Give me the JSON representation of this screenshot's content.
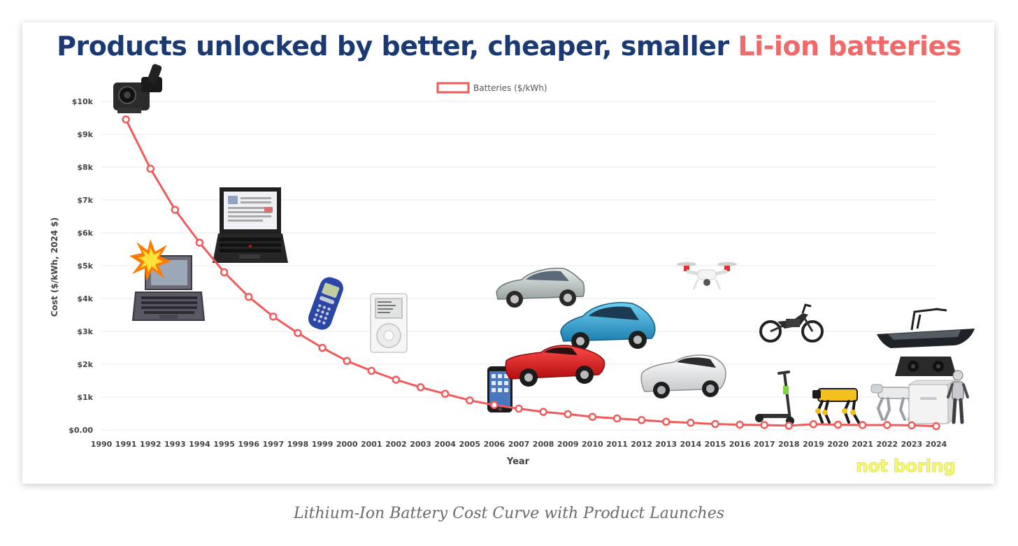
{
  "title": {
    "part1": "Products unlocked by better, cheaper, smaller ",
    "part2": "Li-ion batteries"
  },
  "caption": "Lithium-Ion Battery Cost Curve with Product Launches",
  "watermark": "not boring",
  "colors": {
    "title_dark": "#1b3a73",
    "title_accent": "#f06a6a",
    "line": "#ef5a5a",
    "grid": "#e8e8e8",
    "text": "#444444"
  },
  "chart_data": {
    "type": "line",
    "title": "Products unlocked by better, cheaper, smaller Li-ion batteries",
    "xlabel": "Year",
    "ylabel": "Cost ($/kWh, 2024 $)",
    "legend": {
      "label": "Batteries ($/kWh)",
      "position": "top-center"
    },
    "grid": true,
    "x_ticks": [
      "1990",
      "1991",
      "1992",
      "1993",
      "1994",
      "1995",
      "1996",
      "1997",
      "1998",
      "1999",
      "2000",
      "2001",
      "2002",
      "2003",
      "2004",
      "2005",
      "2006",
      "2007",
      "2008",
      "2009",
      "2010",
      "2011",
      "2012",
      "2013",
      "2014",
      "2015",
      "2016",
      "2017",
      "2018",
      "2019",
      "2020",
      "2021",
      "2022",
      "2023",
      "2024"
    ],
    "xlim": [
      1990,
      2024
    ],
    "y_ticks": [
      {
        "value": 0,
        "label": "$0.00"
      },
      {
        "value": 1000,
        "label": "$1k"
      },
      {
        "value": 2000,
        "label": "$2k"
      },
      {
        "value": 3000,
        "label": "$3k"
      },
      {
        "value": 4000,
        "label": "$4k"
      },
      {
        "value": 5000,
        "label": "$5k"
      },
      {
        "value": 6000,
        "label": "$6k"
      },
      {
        "value": 7000,
        "label": "$7k"
      },
      {
        "value": 8000,
        "label": "$8k"
      },
      {
        "value": 9000,
        "label": "$9k"
      },
      {
        "value": 10000,
        "label": "$10k"
      }
    ],
    "ylim": [
      0,
      10000
    ],
    "series": [
      {
        "name": "Batteries ($/kWh)",
        "x": [
          1991,
          1992,
          1993,
          1994,
          1995,
          1996,
          1997,
          1998,
          1999,
          2000,
          2001,
          2002,
          2003,
          2004,
          2005,
          2006,
          2007,
          2008,
          2009,
          2010,
          2011,
          2012,
          2013,
          2014,
          2015,
          2016,
          2017,
          2018,
          2019,
          2020,
          2021,
          2022,
          2023,
          2024
        ],
        "values": [
          9450,
          7950,
          6700,
          5700,
          4800,
          4050,
          3450,
          2950,
          2500,
          2100,
          1800,
          1530,
          1300,
          1100,
          900,
          760,
          650,
          550,
          480,
          400,
          350,
          300,
          250,
          220,
          180,
          160,
          150,
          130,
          175,
          160,
          150,
          150,
          140,
          115
        ]
      }
    ],
    "products": [
      {
        "name": "camcorder-icon",
        "year": 1991
      },
      {
        "name": "laptop-icon",
        "year": 1992
      },
      {
        "name": "thinkpad-laptop-icon",
        "year": 1995
      },
      {
        "name": "mobile-phone-icon",
        "year": 1999
      },
      {
        "name": "ipod-icon",
        "year": 2001
      },
      {
        "name": "iphone-icon",
        "year": 2007
      },
      {
        "name": "sedan-car-icon",
        "year": 2008
      },
      {
        "name": "roadster-car-icon",
        "year": 2008
      },
      {
        "name": "leaf-ev-car-icon",
        "year": 2010
      },
      {
        "name": "model-s-car-icon",
        "year": 2012
      },
      {
        "name": "drone-icon",
        "year": 2014
      },
      {
        "name": "electric-motorbike-icon",
        "year": 2018
      },
      {
        "name": "electric-scooter-icon",
        "year": 2018
      },
      {
        "name": "robot-dog-icon",
        "year": 2020
      },
      {
        "name": "robot-dog-white-icon",
        "year": 2022
      },
      {
        "name": "battery-module-icon",
        "year": 2023
      },
      {
        "name": "home-battery-icon",
        "year": 2023
      },
      {
        "name": "humanoid-robot-icon",
        "year": 2024
      },
      {
        "name": "electric-boat-icon",
        "year": 2023
      }
    ]
  }
}
